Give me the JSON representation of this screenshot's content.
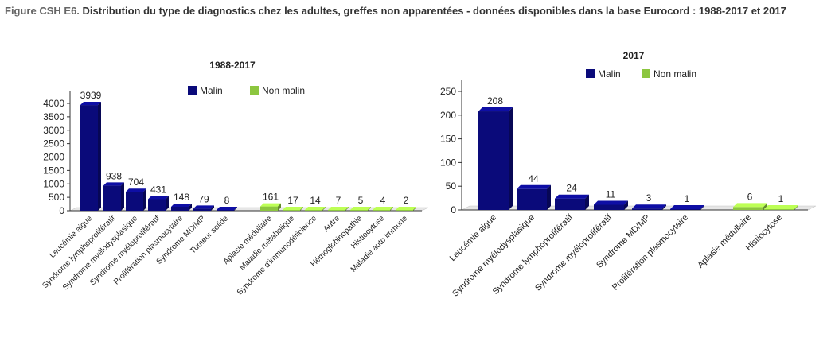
{
  "figure": {
    "label": "Figure CSH E6.",
    "title": "Distribution du type de diagnostics chez les adultes, greffes non apparentées - données disponibles dans la base Eurocord : 1988-2017 et 2017"
  },
  "colors": {
    "malin": "#0a0a7a",
    "non_malin": "#8cc63f",
    "axis": "#333333"
  },
  "chart_data": [
    {
      "type": "bar",
      "title": "1988-2017",
      "legend": [
        "Malin",
        "Non malin"
      ],
      "legend_position": "top-center",
      "xlabel": "",
      "ylabel": "",
      "ylim": [
        0,
        4000
      ],
      "yticks": [
        0,
        500,
        1000,
        1500,
        2000,
        2500,
        3000,
        3500,
        4000
      ],
      "grid": false,
      "categories": [
        "Leucémie aigue",
        "Syndrome lymphoprolifératif",
        "Syndrome myélodysplasique",
        "Syndrome myéloprolifératif",
        "Prolifération plasmocytaire",
        "Syndrome MD/MP",
        "Tumeur solide",
        "Aplasie médullaire",
        "Maladie métabolique",
        "Syndrome d'immunodéficience",
        "Autre",
        "Hémoglobinopathie",
        "Histiocytose",
        "Maladie auto immune"
      ],
      "values": [
        3939,
        938,
        704,
        431,
        148,
        79,
        8,
        161,
        17,
        14,
        7,
        5,
        4,
        2
      ],
      "groups": [
        "Malin",
        "Malin",
        "Malin",
        "Malin",
        "Malin",
        "Malin",
        "Malin",
        "Non malin",
        "Non malin",
        "Non malin",
        "Non malin",
        "Non malin",
        "Non malin",
        "Non malin"
      ]
    },
    {
      "type": "bar",
      "title": "2017",
      "legend": [
        "Malin",
        "Non malin"
      ],
      "legend_position": "top-center",
      "xlabel": "",
      "ylabel": "",
      "ylim": [
        0,
        250
      ],
      "yticks": [
        0,
        50,
        100,
        150,
        200,
        250
      ],
      "grid": false,
      "categories": [
        "Leucémie aigue",
        "Syndrome myélodysplasique",
        "Syndrome lymphoprolifératif",
        "Syndrome myéloprolifératif",
        "Syndrome MD/MP",
        "Prolifération plasmocytaire",
        "Aplasie médullaire",
        "Histiocytose"
      ],
      "values": [
        208,
        44,
        24,
        11,
        3,
        1,
        6,
        1
      ],
      "groups": [
        "Malin",
        "Malin",
        "Malin",
        "Malin",
        "Malin",
        "Malin",
        "Non malin",
        "Non malin"
      ]
    }
  ]
}
